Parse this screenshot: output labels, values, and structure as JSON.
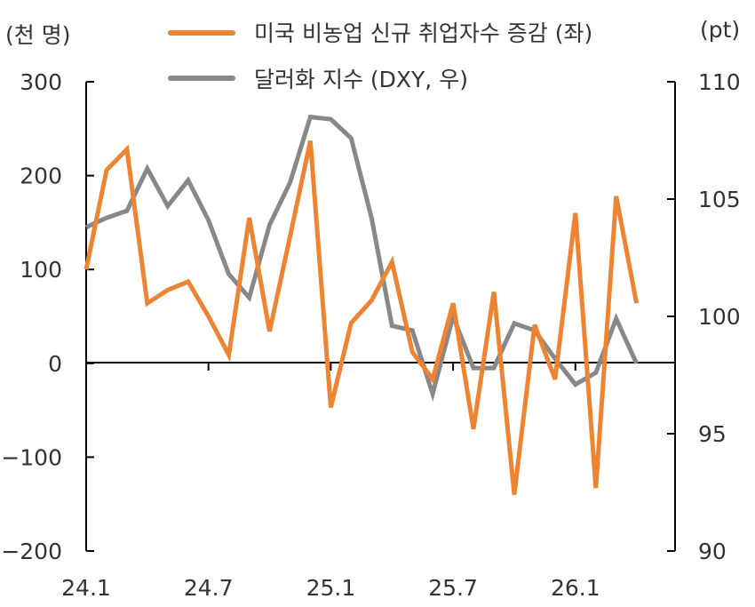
{
  "chart_data": {
    "type": "line",
    "categories": [
      "24.1",
      "24.2",
      "24.3",
      "24.4",
      "24.5",
      "24.6",
      "24.7",
      "24.8",
      "24.9",
      "24.10",
      "24.11",
      "24.12",
      "25.1",
      "25.2",
      "25.3",
      "25.4",
      "25.5",
      "25.6",
      "25.7",
      "25.8",
      "25.9",
      "25.10",
      "25.11",
      "25.12",
      "26.1",
      "26.2",
      "26.3",
      "26.4"
    ],
    "xticks": [
      "24.1",
      "24.7",
      "25.1",
      "25.7",
      "26.1"
    ],
    "left_axis": {
      "unit": "(천 명)",
      "ylim": [
        -200,
        300
      ],
      "ticks": [
        300,
        200,
        100,
        0,
        -100,
        -200
      ]
    },
    "right_axis": {
      "unit": "(pt)",
      "ylim": [
        90,
        110
      ],
      "ticks": [
        110,
        105,
        100,
        95,
        90
      ]
    },
    "legend_position": "top",
    "series": [
      {
        "name": "미국 비농업 신규 취업자수 증감 (좌)",
        "axis": "left",
        "color": "#ee8432",
        "values": [
          100,
          206,
          228,
          64,
          78,
          87,
          50,
          9,
          155,
          34,
          135,
          237,
          -47,
          43,
          67,
          108,
          12,
          -17,
          64,
          -70,
          76,
          -140,
          41,
          -17,
          160,
          -133,
          178,
          64
        ]
      },
      {
        "name": "달러화 지수 (DXY, 우)",
        "axis": "right",
        "color": "#888888",
        "values": [
          103.8,
          104.2,
          104.5,
          106.3,
          104.7,
          105.8,
          104.1,
          101.8,
          100.8,
          103.9,
          105.7,
          108.5,
          108.4,
          107.6,
          104.2,
          99.6,
          99.4,
          96.7,
          100.0,
          97.8,
          97.8,
          99.7,
          99.4,
          98.2,
          97.1,
          97.6,
          99.9,
          98.0
        ]
      }
    ]
  }
}
